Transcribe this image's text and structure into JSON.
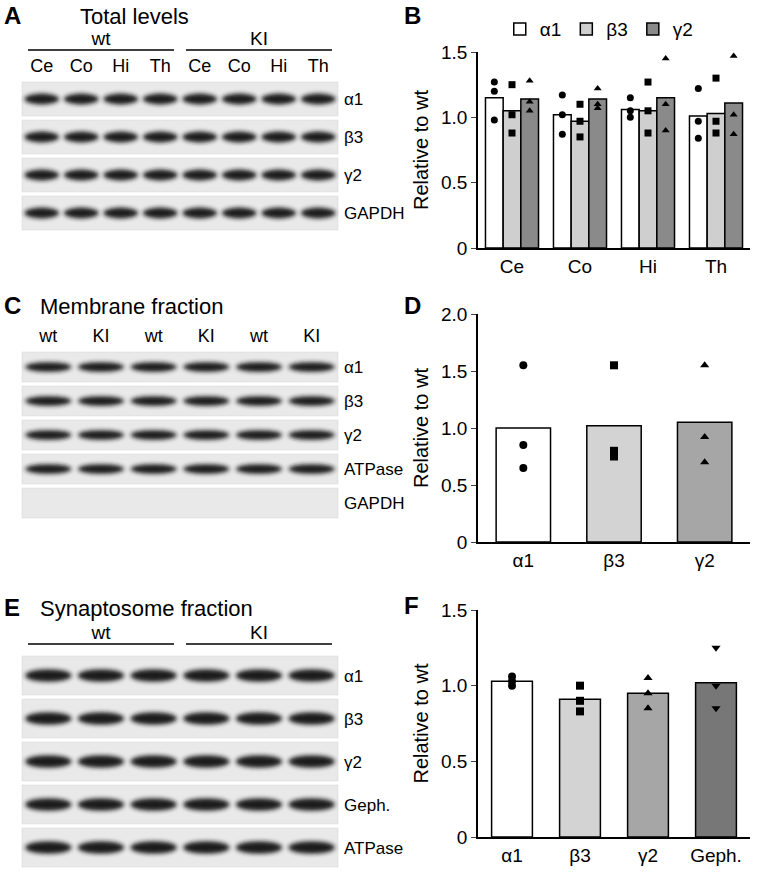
{
  "blots": [
    {
      "letter": "A",
      "title": "Total levels",
      "groups": [
        {
          "label": "wt",
          "lanes": [
            "Ce",
            "Co",
            "Hi",
            "Th"
          ]
        },
        {
          "label": "KI",
          "lanes": [
            "Ce",
            "Co",
            "Hi",
            "Th"
          ]
        }
      ],
      "rows": [
        {
          "label": "α1",
          "bands": true
        },
        {
          "label": "β3",
          "bands": true
        },
        {
          "label": "γ2",
          "bands": true
        },
        {
          "label": "GAPDH",
          "bands": true
        }
      ]
    },
    {
      "letter": "C",
      "title": "Membrane fraction",
      "groups": [
        {
          "label": null,
          "lanes": [
            "wt",
            "KI",
            "wt",
            "KI",
            "wt",
            "KI"
          ]
        }
      ],
      "rows": [
        {
          "label": "α1",
          "bands": true
        },
        {
          "label": "β3",
          "bands": true
        },
        {
          "label": "γ2",
          "bands": true
        },
        {
          "label": "ATPase",
          "bands": true
        },
        {
          "label": "GAPDH",
          "bands": false
        }
      ]
    },
    {
      "letter": "E",
      "title": "Synaptosome fraction",
      "groups": [
        {
          "label": "wt",
          "lanes": [
            null,
            null,
            null
          ]
        },
        {
          "label": "KI",
          "lanes": [
            null,
            null,
            null
          ]
        }
      ],
      "rows": [
        {
          "label": "α1",
          "bands": true
        },
        {
          "label": "β3",
          "bands": true
        },
        {
          "label": "γ2",
          "bands": true
        },
        {
          "label": "Geph.",
          "bands": true
        },
        {
          "label": "ATPase",
          "bands": true
        }
      ]
    }
  ],
  "chart_letters": [
    "B",
    "D",
    "F"
  ],
  "chart_data": [
    {
      "type": "bar",
      "y_label": "Relative to wt",
      "categories": [
        "Ce",
        "Co",
        "Hi",
        "Th"
      ],
      "legend": "top",
      "ylim": [
        0,
        1.5
      ],
      "yticks": [
        0,
        {
          "value": 0.5,
          "label": "0.5"
        },
        {
          "value": 1,
          "label": "1.0"
        },
        {
          "value": 1.5,
          "label": "1.5"
        }
      ],
      "series": [
        {
          "name": "α1",
          "color": "#ffffff",
          "marker": "circle",
          "values": [
            1.15,
            1.02,
            1.06,
            1.01
          ],
          "points": [
            [
              1.27,
              1.2,
              0.98
            ],
            [
              1.17,
              1.02,
              0.87
            ],
            [
              1.15,
              1.05,
              1.0
            ],
            [
              1.22,
              0.97,
              0.84
            ]
          ]
        },
        {
          "name": "β3",
          "color": "#cfcfcf",
          "marker": "square",
          "values": [
            1.05,
            0.97,
            1.05,
            1.03
          ],
          "points": [
            [
              1.25,
              1.02,
              0.88
            ],
            [
              1.1,
              0.97,
              0.85
            ],
            [
              1.27,
              1.05,
              0.88
            ],
            [
              1.3,
              0.97,
              0.88
            ]
          ]
        },
        {
          "name": "γ2",
          "color": "#8a8a8a",
          "marker": "triangle-up",
          "values": [
            1.14,
            1.14,
            1.15,
            1.11
          ],
          "points": [
            [
              1.28,
              1.12,
              1.05
            ],
            [
              1.22,
              1.1,
              1.07
            ],
            [
              1.45,
              1.1,
              0.9
            ],
            [
              1.47,
              1.02,
              0.87
            ]
          ]
        }
      ]
    },
    {
      "type": "bar",
      "y_label": "Relative to wt",
      "categories": [
        "α1",
        "β3",
        "γ2"
      ],
      "ylim": [
        0,
        2
      ],
      "yticks": [
        0,
        {
          "value": 0.5,
          "label": "0.5"
        },
        {
          "value": 1,
          "label": "1.0"
        },
        {
          "value": 1.5,
          "label": "1.5"
        },
        {
          "value": 2,
          "label": "2.0"
        }
      ],
      "values": [
        1.0,
        1.02,
        1.05
      ],
      "colors": [
        "#ffffff",
        "#d3d3d3",
        "#a6a6a6"
      ],
      "points": [
        {
          "marker": "circle",
          "values": [
            1.55,
            0.85,
            0.65
          ]
        },
        {
          "marker": "square",
          "values": [
            1.55,
            0.8,
            0.75
          ]
        },
        {
          "marker": "triangle-up",
          "values": [
            1.55,
            0.92,
            0.7
          ]
        }
      ]
    },
    {
      "type": "bar",
      "y_label": "Relative to wt",
      "categories": [
        "α1",
        "β3",
        "γ2",
        "Geph."
      ],
      "ylim": [
        0,
        1.5
      ],
      "yticks": [
        0,
        {
          "value": 0.5,
          "label": "0.5"
        },
        {
          "value": 1,
          "label": "1.0"
        },
        {
          "value": 1.5,
          "label": "1.5"
        }
      ],
      "values": [
        1.03,
        0.91,
        0.95,
        1.02
      ],
      "colors": [
        "#ffffff",
        "#d3d3d3",
        "#a6a6a6",
        "#777777"
      ],
      "points": [
        {
          "marker": "circle",
          "values": [
            1.06,
            1.03,
            1.0
          ]
        },
        {
          "marker": "square",
          "values": [
            1.0,
            0.9,
            0.83
          ]
        },
        {
          "marker": "triangle-up",
          "values": [
            1.05,
            0.95,
            0.85
          ]
        },
        {
          "marker": "triangle-down",
          "values": [
            1.25,
            1.0,
            0.85
          ]
        }
      ]
    }
  ]
}
